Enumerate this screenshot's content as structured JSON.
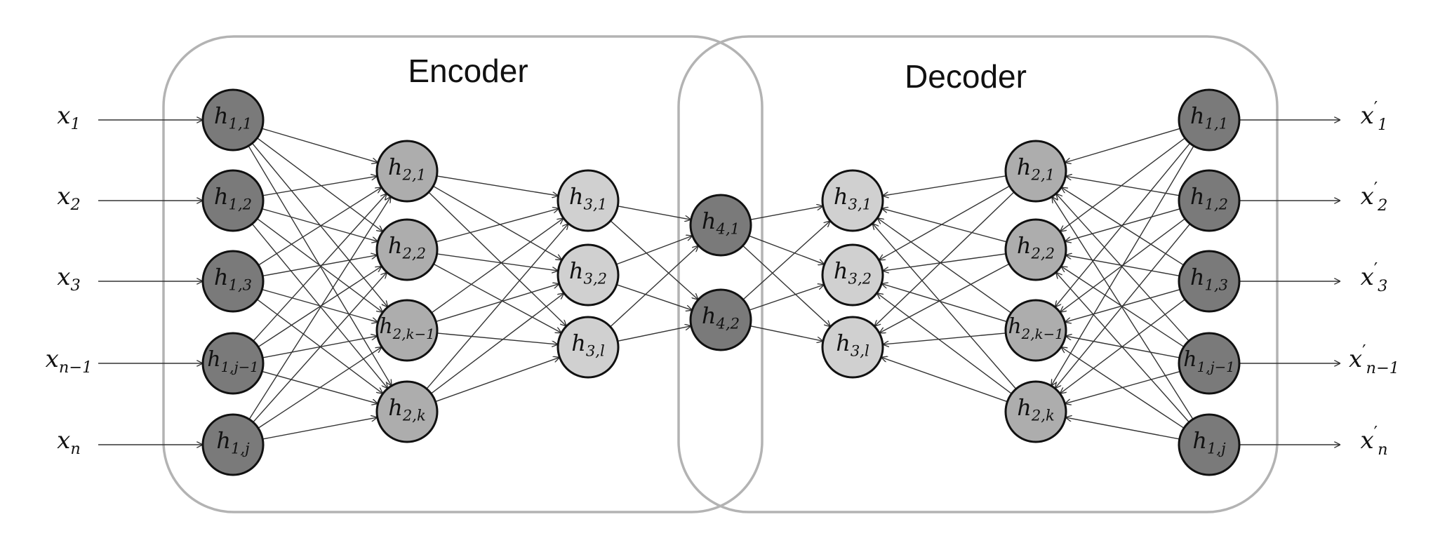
{
  "regions": {
    "encoder": {
      "label": "Encoder"
    },
    "decoder": {
      "label": "Decoder"
    }
  },
  "colors": {
    "dark": "#7a7a7a",
    "medium": "#adadad",
    "light": "#d0d0d0"
  },
  "layers": {
    "enc1": {
      "shade": "dark",
      "nodes": [
        [
          "h",
          "1,1"
        ],
        [
          "h",
          "1,2"
        ],
        [
          "h",
          "1,3"
        ],
        [
          "h",
          "1,j−1"
        ],
        [
          "h",
          "1,j"
        ]
      ]
    },
    "enc2": {
      "shade": "medium",
      "nodes": [
        [
          "h",
          "2,1"
        ],
        [
          "h",
          "2,2"
        ],
        [
          "h",
          "2,k−1"
        ],
        [
          "h",
          "2,k"
        ]
      ]
    },
    "enc3": {
      "shade": "light",
      "nodes": [
        [
          "h",
          "3,1"
        ],
        [
          "h",
          "3,2"
        ],
        [
          "h",
          "3,l"
        ]
      ]
    },
    "code": {
      "shade": "dark",
      "nodes": [
        [
          "h",
          "4,1"
        ],
        [
          "h",
          "4,2"
        ]
      ]
    },
    "dec3": {
      "shade": "light",
      "nodes": [
        [
          "h",
          "3,1"
        ],
        [
          "h",
          "3,2"
        ],
        [
          "h",
          "3,l"
        ]
      ]
    },
    "dec2": {
      "shade": "medium",
      "nodes": [
        [
          "h",
          "2,1"
        ],
        [
          "h",
          "2,2"
        ],
        [
          "h",
          "2,k−1"
        ],
        [
          "h",
          "2,k"
        ]
      ]
    },
    "dec1": {
      "shade": "dark",
      "nodes": [
        [
          "h",
          "1,1"
        ],
        [
          "h",
          "1,2"
        ],
        [
          "h",
          "1,3"
        ],
        [
          "h",
          "1,j−1"
        ],
        [
          "h",
          "1,j"
        ]
      ]
    }
  },
  "inputs": [
    [
      "x",
      "1",
      ""
    ],
    [
      "x",
      "2",
      ""
    ],
    [
      "x",
      "3",
      ""
    ],
    [
      "x",
      "n−1",
      ""
    ],
    [
      "x",
      "n",
      ""
    ]
  ],
  "outputs": [
    [
      "x",
      "1",
      "′"
    ],
    [
      "x",
      "2",
      "′"
    ],
    [
      "x",
      "3",
      "′"
    ],
    [
      "x",
      "n−1",
      "′"
    ],
    [
      "x",
      "n",
      "′"
    ]
  ]
}
